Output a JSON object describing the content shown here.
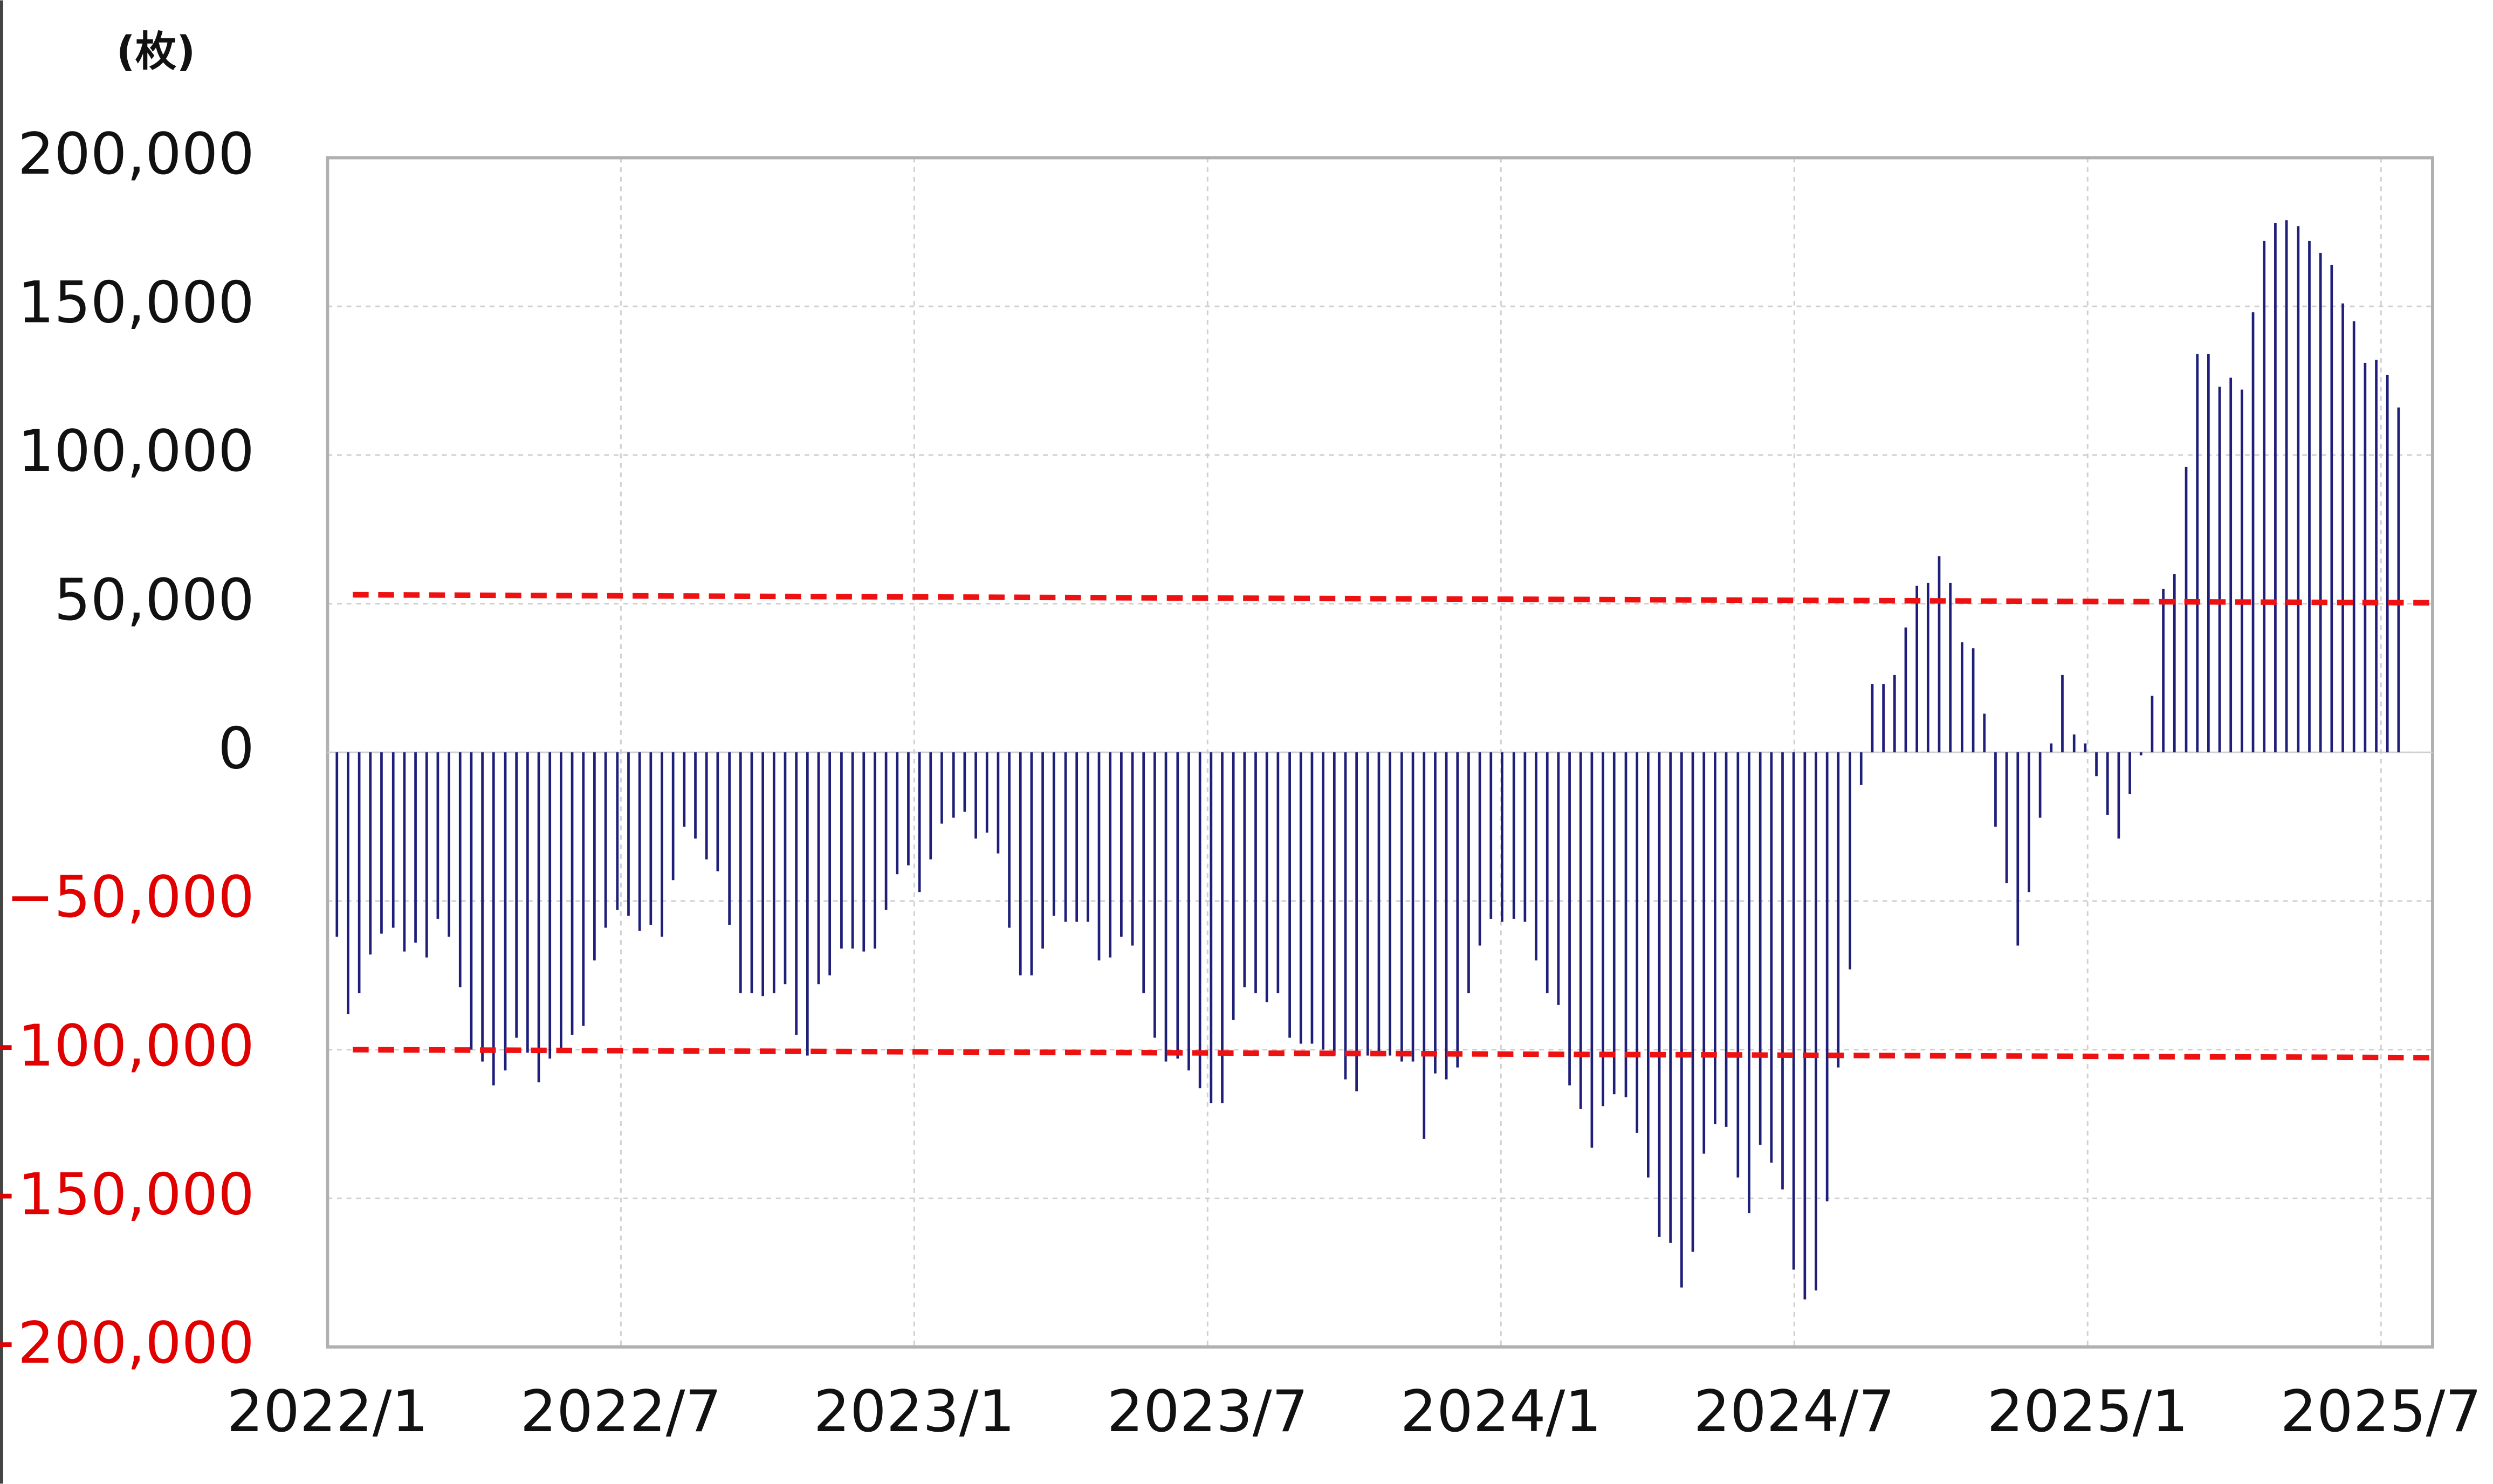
{
  "chart_data": {
    "type": "bar",
    "unit_label": "(枚)",
    "color": "#1f1f7a",
    "negative_tick_color": "#e00000",
    "grid": true,
    "xlim": [
      2022.0,
      2025.588
    ],
    "ylim": [
      -200000,
      200000
    ],
    "xticks": [
      {
        "value": 2022.0,
        "label": "2022/1"
      },
      {
        "value": 2022.5,
        "label": "2022/7"
      },
      {
        "value": 2023.0,
        "label": "2023/1"
      },
      {
        "value": 2023.5,
        "label": "2023/7"
      },
      {
        "value": 2024.0,
        "label": "2024/1"
      },
      {
        "value": 2024.5,
        "label": "2024/7"
      },
      {
        "value": 2025.0,
        "label": "2025/1"
      },
      {
        "value": 2025.5,
        "label": "2025/7"
      }
    ],
    "yticks": [
      {
        "value": -200000,
        "label": "−200,000"
      },
      {
        "value": -150000,
        "label": "−150,000"
      },
      {
        "value": -100000,
        "label": "−100,000"
      },
      {
        "value": -50000,
        "label": "−50,000"
      },
      0,
      {
        "value": 50000,
        "label": "50,000"
      },
      {
        "value": 100000,
        "label": "100,000"
      },
      {
        "value": 150000,
        "label": "150,000"
      },
      {
        "value": 200000,
        "label": "200,000"
      }
    ],
    "reference_lines": [
      {
        "color": "#ee1111",
        "x": [
          2022.043,
          2025.588
        ],
        "values": [
          53000,
          50300
        ]
      },
      {
        "color": "#ee1111",
        "x": [
          2022.043,
          2025.588
        ],
        "values": [
          -100000,
          -102700
        ]
      }
    ],
    "x": [
      2022.016,
      2022.035,
      2022.054,
      2022.073,
      2022.092,
      2022.112,
      2022.131,
      2022.15,
      2022.169,
      2022.188,
      2022.207,
      2022.226,
      2022.245,
      2022.264,
      2022.283,
      2022.303,
      2022.322,
      2022.341,
      2022.36,
      2022.379,
      2022.398,
      2022.417,
      2022.436,
      2022.455,
      2022.474,
      2022.494,
      2022.513,
      2022.532,
      2022.551,
      2022.57,
      2022.589,
      2022.608,
      2022.627,
      2022.646,
      2022.665,
      2022.685,
      2022.704,
      2022.723,
      2022.742,
      2022.761,
      2022.78,
      2022.799,
      2022.818,
      2022.837,
      2022.856,
      2022.876,
      2022.895,
      2022.914,
      2022.933,
      2022.952,
      2022.971,
      2022.99,
      2023.009,
      2023.028,
      2023.047,
      2023.067,
      2023.086,
      2023.105,
      2023.124,
      2023.143,
      2023.162,
      2023.181,
      2023.2,
      2023.219,
      2023.238,
      2023.258,
      2023.277,
      2023.296,
      2023.315,
      2023.334,
      2023.353,
      2023.372,
      2023.391,
      2023.41,
      2023.429,
      2023.449,
      2023.468,
      2023.487,
      2023.506,
      2023.525,
      2023.544,
      2023.563,
      2023.582,
      2023.601,
      2023.62,
      2023.64,
      2023.659,
      2023.678,
      2023.697,
      2023.716,
      2023.735,
      2023.754,
      2023.773,
      2023.792,
      2023.811,
      2023.831,
      2023.85,
      2023.869,
      2023.888,
      2023.907,
      2023.926,
      2023.945,
      2023.964,
      2023.983,
      2024.002,
      2024.022,
      2024.041,
      2024.06,
      2024.079,
      2024.098,
      2024.117,
      2024.136,
      2024.155,
      2024.174,
      2024.193,
      2024.213,
      2024.232,
      2024.251,
      2024.27,
      2024.289,
      2024.308,
      2024.327,
      2024.346,
      2024.365,
      2024.384,
      2024.404,
      2024.423,
      2024.442,
      2024.461,
      2024.48,
      2024.499,
      2024.518,
      2024.537,
      2024.556,
      2024.575,
      2024.595,
      2024.614,
      2024.633,
      2024.652,
      2024.671,
      2024.69,
      2024.709,
      2024.728,
      2024.747,
      2024.766,
      2024.786,
      2024.805,
      2024.824,
      2024.843,
      2024.862,
      2024.881,
      2024.9,
      2024.919,
      2024.938,
      2024.957,
      2024.977,
      2024.996,
      2025.015,
      2025.034,
      2025.053,
      2025.072,
      2025.091,
      2025.11,
      2025.129,
      2025.148,
      2025.168,
      2025.187,
      2025.206,
      2025.225,
      2025.244,
      2025.263,
      2025.282,
      2025.301,
      2025.32,
      2025.339,
      2025.359,
      2025.378,
      2025.397,
      2025.416,
      2025.435,
      2025.454,
      2025.473,
      2025.492,
      2025.511,
      2025.53
    ],
    "values": [
      -62000,
      -88000,
      -81000,
      -68000,
      -61000,
      -59000,
      -67000,
      -64000,
      -69000,
      -56000,
      -62000,
      -79000,
      -100000,
      -104000,
      -112000,
      -107000,
      -96000,
      -101000,
      -111000,
      -103000,
      -100000,
      -95000,
      -92000,
      -70000,
      -59000,
      -53000,
      -55000,
      -60000,
      -58000,
      -62000,
      -43000,
      -25000,
      -29000,
      -36000,
      -40000,
      -58000,
      -81000,
      -81000,
      -82000,
      -81000,
      -78000,
      -95000,
      -102000,
      -78000,
      -75000,
      -66000,
      -66000,
      -67000,
      -66000,
      -53000,
      -41000,
      -38000,
      -47000,
      -36000,
      -24000,
      -22000,
      -20000,
      -29000,
      -27000,
      -34000,
      -59000,
      -75000,
      -75000,
      -66000,
      -55000,
      -57000,
      -57000,
      -57000,
      -70000,
      -69000,
      -62000,
      -65000,
      -81000,
      -96000,
      -104000,
      -103000,
      -107000,
      -113000,
      -118000,
      -118000,
      -90000,
      -79000,
      -81000,
      -84000,
      -81000,
      -96000,
      -98000,
      -98000,
      -100000,
      -102000,
      -110000,
      -114000,
      -102000,
      -102000,
      -102000,
      -104000,
      -104000,
      -130000,
      -108000,
      -110000,
      -106000,
      -81000,
      -65000,
      -56000,
      -57000,
      -56000,
      -57000,
      -70000,
      -81000,
      -85000,
      -112000,
      -120000,
      -133000,
      -119000,
      -115000,
      -116000,
      -128000,
      -143000,
      -163000,
      -165000,
      -180000,
      -168000,
      -135000,
      -125000,
      -126000,
      -143000,
      -155000,
      -132000,
      -138000,
      -147000,
      -174000,
      -184000,
      -181000,
      -151000,
      -106000,
      -73000,
      -11000,
      23000,
      23000,
      26000,
      42000,
      56000,
      57000,
      66000,
      57000,
      37000,
      35000,
      13000,
      -25000,
      -44000,
      -65000,
      -47000,
      -22000,
      3000,
      26000,
      6000,
      3000,
      -8000,
      -21000,
      -29000,
      -14000,
      -1000,
      19000,
      55000,
      60000,
      96000,
      134000,
      134000,
      123000,
      126000,
      122000,
      148000,
      172000,
      178000,
      179000,
      177000,
      172000,
      168000,
      164000,
      151000,
      145000,
      131000,
      132000,
      127000,
      116000
    ]
  }
}
